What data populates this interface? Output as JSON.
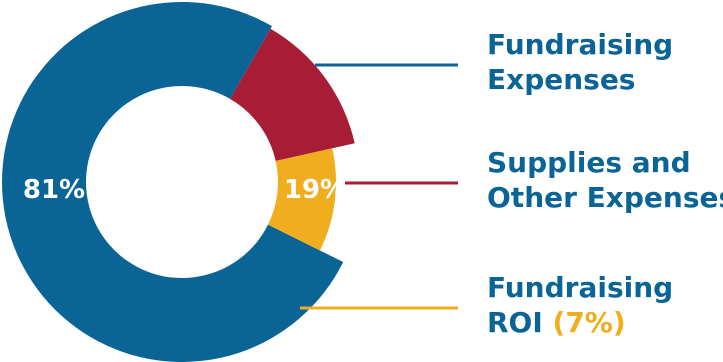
{
  "chart_data": {
    "type": "pie",
    "style": "donut",
    "series": [
      {
        "name": "Fundraising Expenses",
        "value": 81,
        "label": "81%",
        "color": "#0a6596",
        "text_color": "#ffffff"
      },
      {
        "name": "Supplies and Other Expenses",
        "value": 19,
        "label": "19%",
        "color": "#a81d36",
        "text_color": "#ffffff"
      },
      {
        "name": "Fundraising ROI",
        "value": 7,
        "label": "",
        "color": "#f0ad1e",
        "text_color": "#ffffff"
      }
    ],
    "legend": {
      "position": "right",
      "items": [
        {
          "line1": "Fundraising",
          "line2": "Expenses",
          "line2_highlight": "",
          "color": "#0a6596"
        },
        {
          "line1": "Supplies and",
          "line2": "Other Expenses",
          "line2_highlight": "",
          "color": "#a81d36"
        },
        {
          "line1": "Fundraising",
          "line2": "ROI ",
          "line2_highlight": "(7%)",
          "color": "#f0ad1e"
        }
      ]
    }
  }
}
